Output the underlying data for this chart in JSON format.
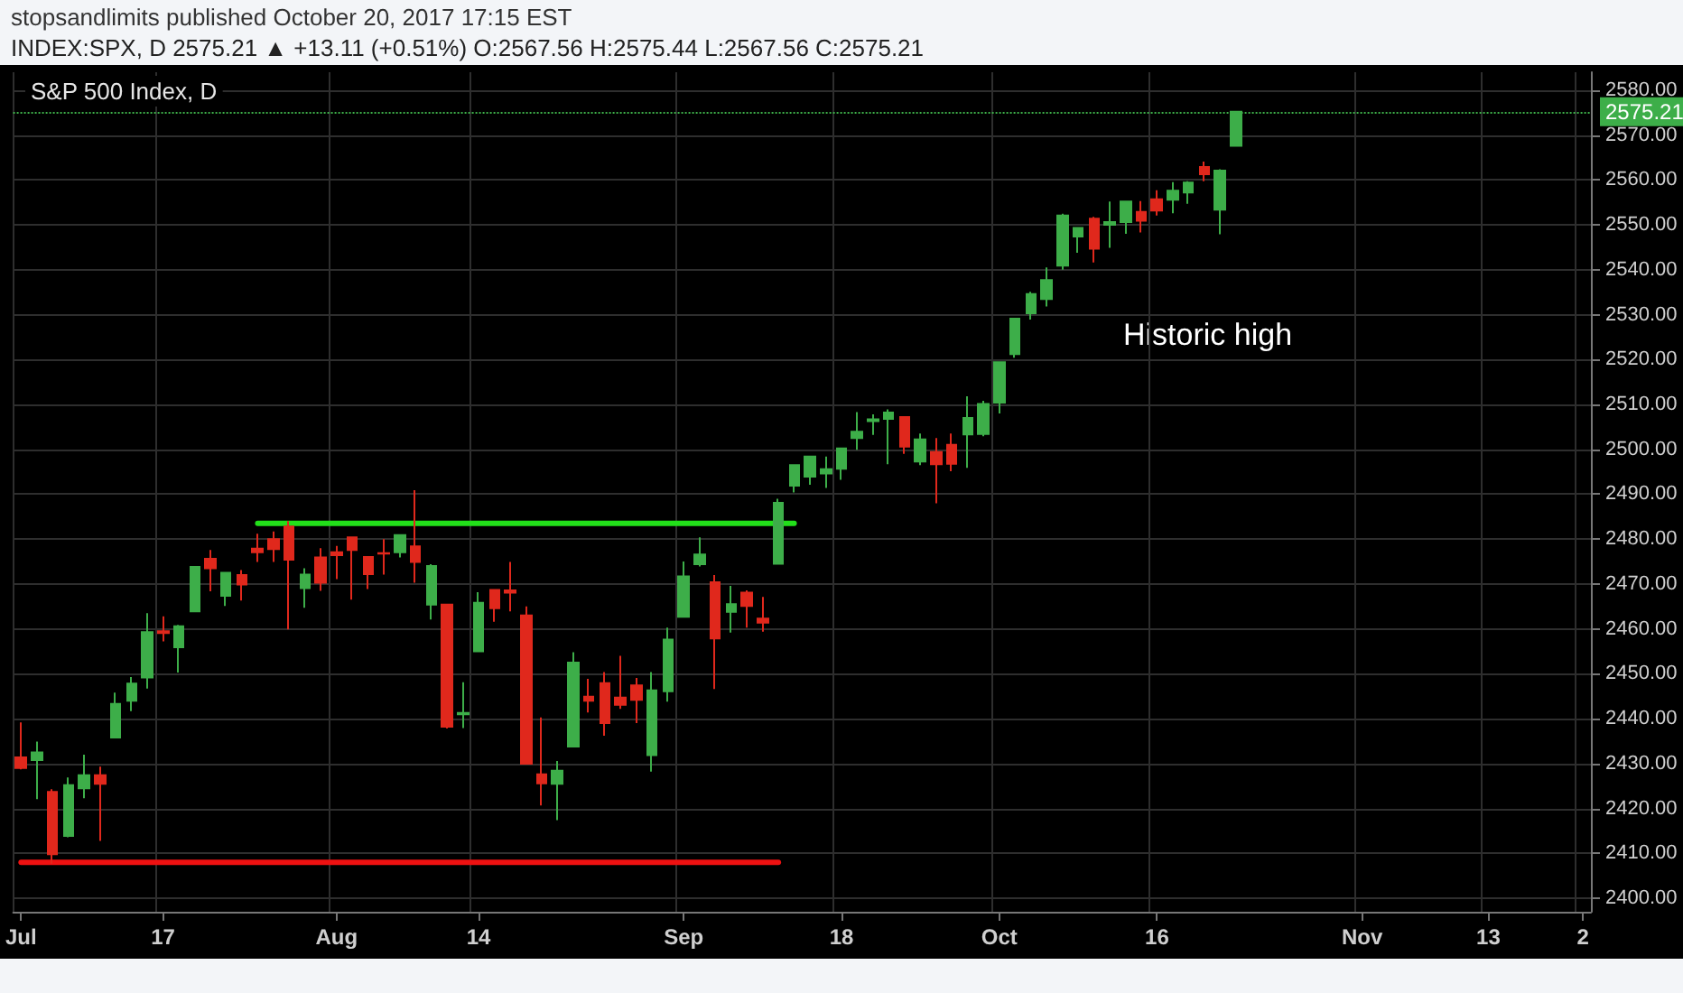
{
  "chart_data": {
    "type": "candlestick",
    "title": "S&P 500 Index, D",
    "subtitle": "INDEX:SPX, D 2575.21 ▲ +13.11 (+0.51%) O:2567.56 H:2575.44 L:2567.56 C:2575.21",
    "annotations": [
      "stopsandlimits published October 20, 2017 17:15 EST",
      "Historic high"
    ],
    "categories": [
      "Jul",
      null,
      null,
      null,
      null,
      null,
      null,
      null,
      null,
      "17",
      null,
      null,
      null,
      null,
      null,
      null,
      null,
      null,
      null,
      null,
      "Aug",
      null,
      null,
      null,
      null,
      null,
      null,
      null,
      null,
      "14",
      null,
      null,
      null,
      null,
      null,
      null,
      null,
      null,
      null,
      null,
      null,
      null,
      "Sep",
      null,
      null,
      null,
      null,
      null,
      null,
      null,
      null,
      null,
      "18",
      null,
      null,
      null,
      null,
      null,
      null,
      null,
      null,
      null,
      "Oct",
      null,
      null,
      null,
      null,
      null,
      null,
      null,
      null,
      null,
      "16",
      null,
      null,
      null,
      null,
      null,
      null,
      null,
      null,
      null,
      null,
      null,
      null,
      "Nov",
      null,
      null,
      null,
      null,
      null,
      null,
      null,
      "13",
      null,
      null,
      null,
      null,
      null,
      "2"
    ],
    "ohlc": [
      [
        2431.4,
        2439.2,
        2428.7,
        2429.0
      ],
      [
        2430.8,
        2434.9,
        2422.1,
        2432.5
      ],
      [
        2423.7,
        2424.3,
        2407.7,
        2409.8
      ],
      [
        2413.9,
        2426.9,
        2413.6,
        2425.2
      ],
      [
        2424.5,
        2432.0,
        2422.3,
        2427.4
      ],
      [
        2427.4,
        2429.3,
        2412.8,
        2425.5
      ],
      [
        2435.8,
        2445.8,
        2435.6,
        2443.3
      ],
      [
        2444.0,
        2449.3,
        2441.7,
        2447.8
      ],
      [
        2449.2,
        2463.5,
        2446.7,
        2459.3
      ],
      [
        2459.5,
        2462.8,
        2457.2,
        2459.1
      ],
      [
        2455.9,
        2460.9,
        2450.3,
        2460.6
      ],
      [
        2463.9,
        2473.8,
        2463.9,
        2473.8
      ],
      [
        2475.6,
        2477.6,
        2468.4,
        2473.5
      ],
      [
        2467.4,
        2472.5,
        2465.1,
        2472.5
      ],
      [
        2472.0,
        2473.1,
        2466.3,
        2469.9
      ],
      [
        2477.9,
        2481.2,
        2474.9,
        2477.1
      ],
      [
        2480.0,
        2481.7,
        2474.9,
        2477.8
      ],
      [
        2482.8,
        2484.0,
        2459.9,
        2475.4
      ],
      [
        2469.1,
        2473.5,
        2464.7,
        2472.1
      ],
      [
        2475.9,
        2478.0,
        2468.5,
        2470.3
      ],
      [
        2477.1,
        2478.5,
        2471.1,
        2476.4
      ],
      [
        2480.4,
        2480.4,
        2466.5,
        2477.6
      ],
      [
        2476.0,
        2476.0,
        2468.9,
        2472.2
      ],
      [
        2476.9,
        2480.0,
        2472.1,
        2476.8
      ],
      [
        2477.1,
        2481.0,
        2475.9,
        2480.9
      ],
      [
        2478.4,
        2490.9,
        2470.3,
        2474.9
      ],
      [
        2465.4,
        2474.4,
        2462.1,
        2474.0
      ],
      [
        2465.4,
        2465.4,
        2437.8,
        2438.2
      ],
      [
        2441.0,
        2448.1,
        2437.9,
        2441.3
      ],
      [
        2455.0,
        2468.2,
        2455.0,
        2465.8
      ],
      [
        2468.7,
        2468.9,
        2461.6,
        2464.6
      ],
      [
        2468.6,
        2474.9,
        2463.9,
        2468.1
      ],
      [
        2463.0,
        2465.0,
        2430.0,
        2430.0
      ],
      [
        2427.6,
        2440.3,
        2420.7,
        2425.6
      ],
      [
        2425.5,
        2430.6,
        2417.4,
        2428.4
      ],
      [
        2433.8,
        2454.8,
        2433.7,
        2452.5
      ],
      [
        2444.9,
        2448.9,
        2441.4,
        2444.0
      ],
      [
        2447.9,
        2450.4,
        2436.2,
        2439.0
      ],
      [
        2444.7,
        2454.0,
        2442.2,
        2443.1
      ],
      [
        2447.4,
        2449.1,
        2439.0,
        2444.2
      ],
      [
        2431.9,
        2450.4,
        2428.2,
        2446.3
      ],
      [
        2446.1,
        2460.3,
        2443.8,
        2457.6
      ],
      [
        2462.7,
        2475.0,
        2462.7,
        2471.7
      ],
      [
        2474.4,
        2480.4,
        2473.9,
        2476.6
      ],
      [
        2470.4,
        2472.0,
        2446.6,
        2457.9
      ],
      [
        2463.8,
        2469.6,
        2459.2,
        2465.5
      ],
      [
        2468.1,
        2468.6,
        2460.3,
        2465.1
      ],
      [
        2462.3,
        2467.1,
        2459.4,
        2461.4
      ],
      [
        2474.5,
        2489.0,
        2474.5,
        2488.1
      ],
      [
        2491.9,
        2496.5,
        2490.4,
        2496.5
      ],
      [
        2493.9,
        2498.4,
        2492.1,
        2498.4
      ],
      [
        2494.6,
        2498.4,
        2491.4,
        2495.6
      ],
      [
        2495.7,
        2500.2,
        2493.2,
        2500.2
      ],
      [
        2502.5,
        2508.3,
        2499.9,
        2503.9
      ],
      [
        2506.3,
        2507.8,
        2503.2,
        2506.7
      ],
      [
        2506.8,
        2508.9,
        2496.7,
        2508.2
      ],
      [
        2507.2,
        2507.2,
        2499.0,
        2500.6
      ],
      [
        2497.3,
        2503.5,
        2496.5,
        2502.2
      ],
      [
        2499.4,
        2502.5,
        2488.0,
        2496.7
      ],
      [
        2501.0,
        2503.5,
        2495.1,
        2496.8
      ],
      [
        2503.3,
        2511.8,
        2495.9,
        2507.0
      ],
      [
        2503.4,
        2510.8,
        2502.9,
        2510.1
      ],
      [
        2510.4,
        2519.4,
        2508.0,
        2519.4
      ],
      [
        2521.2,
        2529.2,
        2520.4,
        2529.1
      ],
      [
        2530.3,
        2535.1,
        2528.9,
        2534.6
      ],
      [
        2533.5,
        2540.5,
        2531.8,
        2537.7
      ],
      [
        2540.9,
        2552.5,
        2540.0,
        2552.1
      ],
      [
        2547.4,
        2549.4,
        2543.8,
        2549.3
      ],
      [
        2551.4,
        2551.8,
        2541.6,
        2544.7
      ],
      [
        2550.0,
        2555.2,
        2544.9,
        2550.6
      ],
      [
        2550.6,
        2555.2,
        2548.0,
        2555.2
      ],
      [
        2552.9,
        2555.3,
        2548.3,
        2550.9
      ],
      [
        2555.7,
        2557.7,
        2552.1,
        2553.2
      ],
      [
        2555.6,
        2559.5,
        2552.6,
        2557.6
      ],
      [
        2557.2,
        2559.7,
        2554.7,
        2559.4
      ],
      [
        2562.9,
        2564.1,
        2559.7,
        2561.3
      ],
      [
        2553.4,
        2562.4,
        2547.9,
        2562.1
      ],
      [
        2567.6,
        2575.4,
        2567.6,
        2575.2
      ],
      null,
      null,
      null,
      null,
      null,
      null,
      null,
      null,
      null,
      null,
      null,
      null,
      null,
      null,
      null,
      null,
      null,
      null,
      null,
      null,
      null,
      null
    ],
    "colors": [
      "#e0281c",
      "#3dae49",
      "#e0281c",
      "#3dae49",
      "#3dae49",
      "#e0281c",
      "#3dae49",
      "#3dae49",
      "#3dae49",
      "#e0281c",
      "#3dae49",
      "#3dae49",
      "#e0281c",
      "#3dae49",
      "#e0281c",
      "#e0281c",
      "#e0281c",
      "#e0281c",
      "#3dae49",
      "#e0281c",
      "#e0281c",
      "#e0281c",
      "#e0281c",
      "#e0281c",
      "#3dae49",
      "#e0281c",
      "#3dae49",
      "#e0281c",
      "#3dae49",
      "#3dae49",
      "#e0281c",
      "#e0281c",
      "#e0281c",
      "#e0281c",
      "#3dae49",
      "#3dae49",
      "#e0281c",
      "#e0281c",
      "#e0281c",
      "#e0281c",
      "#3dae49",
      "#3dae49",
      "#3dae49",
      "#3dae49",
      "#e0281c",
      "#3dae49",
      "#e0281c",
      "#e0281c",
      "#3dae49",
      "#3dae49",
      "#3dae49",
      "#3dae49",
      "#3dae49",
      "#3dae49",
      "#3dae49",
      "#3dae49",
      "#e0281c",
      "#3dae49",
      "#e0281c",
      "#e0281c",
      "#3dae49",
      "#3dae49",
      "#3dae49",
      "#3dae49",
      "#3dae49",
      "#3dae49",
      "#3dae49",
      "#3dae49",
      "#e0281c",
      "#3dae49",
      "#3dae49",
      "#e0281c",
      "#e0281c",
      "#3dae49",
      "#3dae49",
      "#e0281c",
      "#3dae49",
      "#3dae49",
      null,
      null,
      null,
      null,
      null,
      null,
      null,
      null,
      null,
      null,
      null,
      null,
      null,
      null,
      null,
      null,
      null,
      null,
      null,
      null,
      null,
      null
    ],
    "series": [
      {
        "type": "line",
        "values": [
          null,
          null,
          null,
          null,
          null,
          null,
          null,
          null,
          null,
          null,
          null,
          null,
          null,
          null,
          null,
          2483.5,
          2483.5,
          2483.5,
          2483.5,
          2483.5,
          2483.5,
          2483.5,
          2483.5,
          2483.5,
          2483.5,
          2483.5,
          2483.5,
          2483.5,
          2483.5,
          2483.5,
          2483.5,
          2483.5,
          2483.5,
          2483.5,
          2483.5,
          2483.5,
          2483.5,
          2483.5,
          2483.5,
          2483.5,
          2483.5,
          2483.5,
          2483.5,
          2483.5,
          2483.5,
          2483.5,
          2483.5,
          2483.5,
          2483.5,
          2483.5,
          null,
          null,
          null,
          null,
          null,
          null,
          null,
          null,
          null,
          null,
          null,
          null,
          null,
          null,
          null,
          null,
          null,
          null,
          null,
          null,
          null,
          null,
          null,
          null,
          null,
          null,
          null,
          null,
          null,
          null,
          null,
          null,
          null,
          null,
          null,
          null,
          null,
          null,
          null,
          null,
          null,
          null,
          null,
          null,
          null,
          null,
          null,
          null,
          null,
          null
        ],
        "color": "#22e01a",
        "marker": "none",
        "line_style": "solid"
      },
      {
        "type": "line",
        "values": [
          2408,
          2408,
          2408,
          2408,
          2408,
          2408,
          2408,
          2408,
          2408,
          2408,
          2408,
          2408,
          2408,
          2408,
          2408,
          2408,
          2408,
          2408,
          2408,
          2408,
          2408,
          2408,
          2408,
          2408,
          2408,
          2408,
          2408,
          2408,
          2408,
          2408,
          2408,
          2408,
          2408,
          2408,
          2408,
          2408,
          2408,
          2408,
          2408,
          2408,
          2408,
          2408,
          2408,
          2408,
          2408,
          2408,
          2408,
          2408,
          2408,
          null,
          null,
          null,
          null,
          null,
          null,
          null,
          null,
          null,
          null,
          null,
          null,
          null,
          null,
          null,
          null,
          null,
          null,
          null,
          null,
          null,
          null,
          null,
          null,
          null,
          null,
          null,
          null,
          null,
          null,
          null,
          null,
          null,
          null,
          null,
          null,
          null,
          null,
          null,
          null,
          null,
          null,
          null,
          null,
          null,
          null,
          null,
          null,
          null,
          null,
          null
        ],
        "color": "#ee1111",
        "marker": "none",
        "line_style": "solid"
      }
    ],
    "ylim": [
      2397,
      2584
    ],
    "yticks": [
      {
        "value": 2400,
        "label": "2400.00"
      },
      {
        "value": 2410,
        "label": "2410.00"
      },
      {
        "value": 2420,
        "label": "2420.00"
      },
      {
        "value": 2430,
        "label": "2430.00"
      },
      {
        "value": 2440,
        "label": "2440.00"
      },
      {
        "value": 2450,
        "label": "2450.00"
      },
      {
        "value": 2460,
        "label": "2460.00"
      },
      {
        "value": 2470,
        "label": "2470.00"
      },
      {
        "value": 2480,
        "label": "2480.00"
      },
      {
        "value": 2490,
        "label": "2490.00"
      },
      {
        "value": 2500,
        "label": "2500.00"
      },
      {
        "value": 2510,
        "label": "2510.00"
      },
      {
        "value": 2520,
        "label": "2520.00"
      },
      {
        "value": 2530,
        "label": "2530.00"
      },
      {
        "value": 2540,
        "label": "2540.00"
      },
      {
        "value": 2550,
        "label": "2550.00"
      },
      {
        "value": 2560,
        "label": "2560.00"
      },
      {
        "value": 2570,
        "label": "2570.00"
      },
      {
        "value": 2580,
        "label": "2580.00"
      }
    ],
    "ref_lines": [
      {
        "axis": "y",
        "value": 2575.21,
        "label": "2575.21",
        "color": "#3dae49",
        "line_style": "dotted"
      }
    ],
    "grid": true
  }
}
